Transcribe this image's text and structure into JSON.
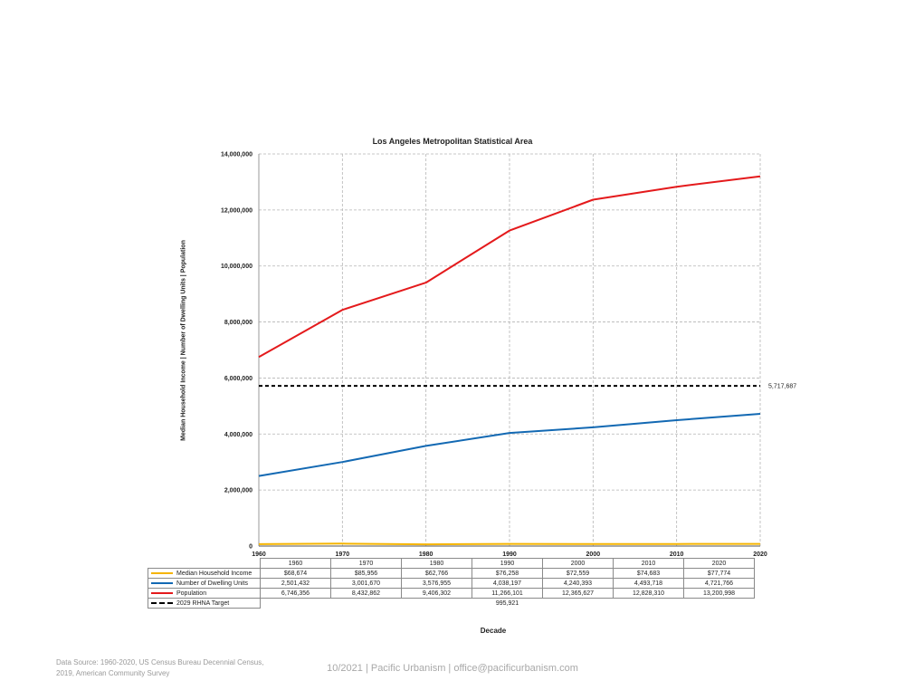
{
  "chart_data": {
    "type": "line",
    "title": "Los Angeles Metropolitan Statistical Area",
    "xlabel": "Decade",
    "ylabel": "Median Household Income | Number of Dwelling Units | Population",
    "x": [
      1960,
      1970,
      1980,
      1990,
      2000,
      2010,
      2020
    ],
    "ylim": [
      0,
      14000000
    ],
    "yticks": [
      "0",
      "2,000,000",
      "4,000,000",
      "6,000,000",
      "8,000,000",
      "10,000,000",
      "12,000,000",
      "14,000,000"
    ],
    "grid": true,
    "series": [
      {
        "name": "Median Household Income",
        "color": "#f5b400",
        "values": [
          68674,
          85956,
          62766,
          76258,
          72559,
          74683,
          77774
        ],
        "labels": [
          "$68,674",
          "$85,956",
          "$62,766",
          "$76,258",
          "$72,559",
          "$74,683",
          "$77,774"
        ]
      },
      {
        "name": "Number of Dwelling Units",
        "color": "#1369b3",
        "values": [
          2501432,
          3001670,
          3576955,
          4038197,
          4240393,
          4493718,
          4721766
        ],
        "labels": [
          "2,501,432",
          "3,001,670",
          "3,576,955",
          "4,038,197",
          "4,240,393",
          "4,493,718",
          "4,721,766"
        ]
      },
      {
        "name": "Population",
        "color": "#e41a1c",
        "values": [
          6746356,
          8432862,
          9406302,
          11266101,
          12365627,
          12828310,
          13200998
        ],
        "labels": [
          "6,746,356",
          "8,432,862",
          "9,406,302",
          "11,266,101",
          "12,365,627",
          "12,828,310",
          "13,200,998"
        ]
      }
    ],
    "target": {
      "name": "2029 RHNA Target",
      "color": "#000000",
      "value": 5717687,
      "label": "5,717,687",
      "table_value": "995,921"
    }
  },
  "footer": {
    "source_line1": "Data Source: 1960-2020, US Census Bureau Decennial Census,",
    "source_line2": "2019, American Community Survey",
    "center": "10/2021 | Pacific Urbanism | office@pacificurbanism.com"
  }
}
